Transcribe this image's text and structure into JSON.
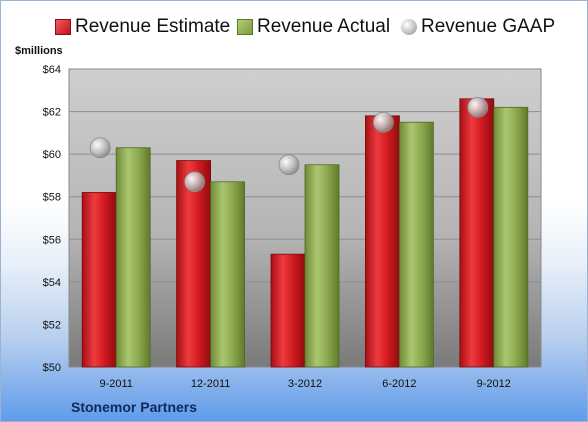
{
  "legend": [
    {
      "label": "Revenue Estimate",
      "color": "#d11a1f",
      "marker": "square"
    },
    {
      "label": "Revenue Actual",
      "color": "#8eaa4f",
      "marker": "square"
    },
    {
      "label": "Revenue GAAP",
      "color": "#c8c8c8",
      "marker": "circle"
    }
  ],
  "unit_label": "$millions",
  "company": "Stonemor Partners",
  "chart_data": {
    "type": "bar",
    "categories": [
      "9-2011",
      "12-2011",
      "3-2012",
      "6-2012",
      "9-2012"
    ],
    "series": [
      {
        "name": "Revenue Estimate",
        "color": "#d11a1f",
        "values": [
          58.2,
          59.7,
          55.3,
          61.8,
          62.6
        ]
      },
      {
        "name": "Revenue Actual",
        "color": "#8eaa4f",
        "values": [
          60.3,
          58.7,
          59.5,
          61.5,
          62.2
        ]
      },
      {
        "name": "Revenue GAAP",
        "type": "scatter",
        "color": "#c8c8c8",
        "values": [
          60.3,
          58.7,
          59.5,
          61.5,
          62.2
        ]
      }
    ],
    "ylim": [
      50,
      64
    ],
    "yticks": [
      "$50",
      "$52",
      "$54",
      "$56",
      "$58",
      "$60",
      "$62",
      "$64"
    ],
    "ytick_values": [
      50,
      52,
      54,
      56,
      58,
      60,
      62,
      64
    ],
    "ylabel": "$millions",
    "grid": true,
    "legend_position": "top"
  }
}
